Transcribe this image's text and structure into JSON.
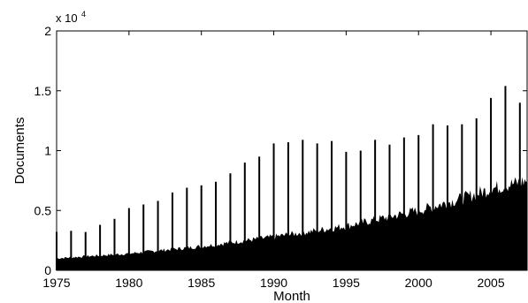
{
  "chart_data": {
    "type": "bar",
    "title": "",
    "xlabel": "Month",
    "ylabel": "Documents",
    "y_exponent_base": "x 10",
    "y_exponent_power": "4",
    "xlim": [
      1975,
      2007.5
    ],
    "ylim": [
      0,
      20000
    ],
    "x_ticks": [
      1975,
      1980,
      1985,
      1990,
      1995,
      2000,
      2005
    ],
    "x_tick_labels": [
      "1975",
      "1980",
      "1985",
      "1990",
      "1995",
      "2000",
      "2005"
    ],
    "y_ticks": [
      0,
      5000,
      10000,
      15000,
      20000
    ],
    "y_tick_labels": [
      "0",
      "0.5",
      "1",
      "1.5",
      "2"
    ],
    "grid": false,
    "color": "#000000",
    "annual_spikes": {
      "x": [
        1975,
        1976,
        1977,
        1978,
        1979,
        1980,
        1981,
        1982,
        1983,
        1984,
        1985,
        1986,
        1987,
        1988,
        1989,
        1990,
        1991,
        1992,
        1993,
        1994,
        1995,
        1996,
        1997,
        1998,
        1999,
        2000,
        2001,
        2002,
        2003,
        2004,
        2005,
        2006,
        2007
      ],
      "values": [
        3200,
        3300,
        3200,
        3800,
        4300,
        5200,
        5500,
        5800,
        6500,
        6900,
        7100,
        7400,
        8100,
        9000,
        9500,
        10600,
        10700,
        10900,
        10600,
        10800,
        9900,
        10000,
        10900,
        10500,
        11100,
        11300,
        12200,
        12100,
        12200,
        12700,
        14400,
        15400,
        14000
      ]
    },
    "monthly_baseline": {
      "x": [
        1975,
        1980,
        1985,
        1990,
        1995,
        2000,
        2003,
        2005,
        2007.5
      ],
      "values": [
        1000,
        1400,
        2000,
        2800,
        3700,
        5000,
        6000,
        6800,
        7500
      ]
    }
  }
}
